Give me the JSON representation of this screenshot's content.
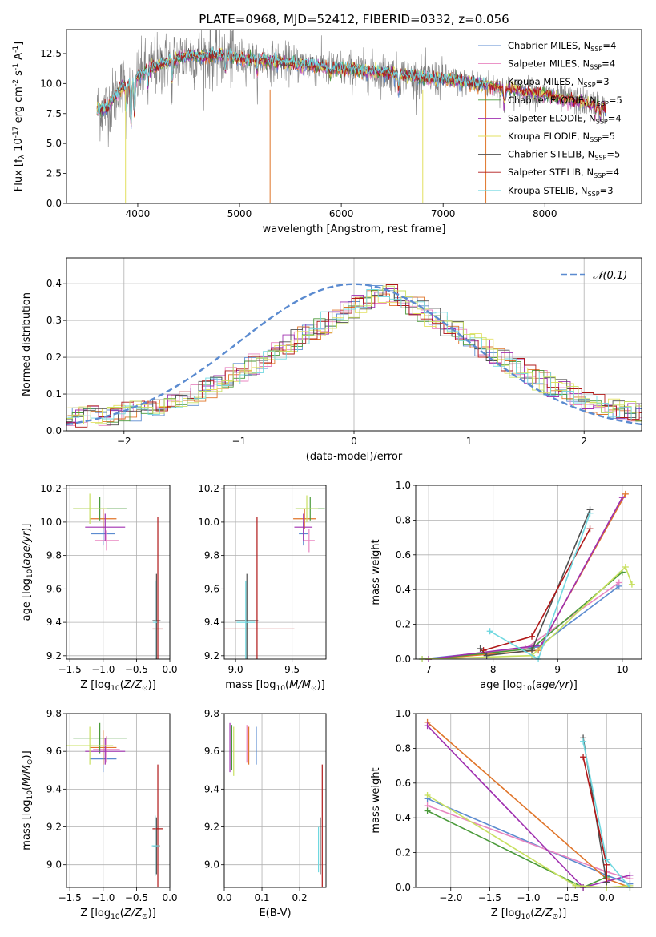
{
  "chart_data": [
    {
      "id": "spectrum",
      "type": "line",
      "title": "PLATE=0968, MJD=52412, FIBERID=0332, z=0.056",
      "xlabel": "wavelength [Angstrom, rest frame]",
      "ylabel": "Flux [f$_\\lambda$ 10$^{-17}$ erg cm$^{-2}$ s$^{-1}$ A$^{-1}$]",
      "xlim": [
        3300,
        8950
      ],
      "ylim": [
        0,
        14.5
      ],
      "xticks": [
        4000,
        5000,
        6000,
        7000,
        8000
      ],
      "yticks": [
        0.0,
        2.5,
        5.0,
        7.5,
        10.0,
        12.5
      ],
      "grid": false,
      "legend_position": "top-right",
      "data_color": "#808080",
      "data_range": [
        3600,
        8600
      ],
      "continuum": [
        [
          3600,
          7.8
        ],
        [
          3700,
          8.0
        ],
        [
          3780,
          9.0
        ],
        [
          3850,
          9.8
        ],
        [
          3950,
          10.0
        ],
        [
          4000,
          10.5
        ],
        [
          4100,
          11.2
        ],
        [
          4300,
          11.8
        ],
        [
          4500,
          12.3
        ],
        [
          4700,
          12.3
        ],
        [
          4850,
          12.4
        ],
        [
          5000,
          12.1
        ],
        [
          5200,
          11.9
        ],
        [
          5500,
          11.7
        ],
        [
          5800,
          11.4
        ],
        [
          6000,
          11.2
        ],
        [
          6300,
          11.0
        ],
        [
          6500,
          10.8
        ],
        [
          6700,
          10.6
        ],
        [
          6900,
          10.4
        ],
        [
          7000,
          10.4
        ],
        [
          7300,
          10.0
        ],
        [
          7600,
          9.6
        ],
        [
          7800,
          9.3
        ],
        [
          8000,
          9.1
        ],
        [
          8200,
          8.7
        ],
        [
          8400,
          8.4
        ],
        [
          8600,
          8.0
        ]
      ],
      "series": [
        {
          "name": "Chabrier MILES, N$_{SSP}$=4",
          "color": "#5b8bd0"
        },
        {
          "name": "Salpeter MILES, N$_{SSP}$=4",
          "color": "#e885c0"
        },
        {
          "name": "Kroupa MILES, N$_{SSP}$=3",
          "color": "#e0752a"
        },
        {
          "name": "Chabrier ELODIE, N$_{SSP}$=5",
          "color": "#4a9a3a"
        },
        {
          "name": "Salpeter ELODIE, N$_{SSP}$=4",
          "color": "#a030b0"
        },
        {
          "name": "Kroupa ELODIE, N$_{SSP}$=5",
          "color": "#e3e060"
        },
        {
          "name": "Chabrier STELIB, N$_{SSP}$=5",
          "color": "#505050"
        },
        {
          "name": "Salpeter STELIB, N$_{SSP}$=4",
          "color": "#b01818"
        },
        {
          "name": "Kroupa STELIB, N$_{SSP}$=3",
          "color": "#70d8e0"
        }
      ]
    },
    {
      "id": "residuals",
      "type": "line",
      "xlabel": "(data-model)/error",
      "ylabel": "Normed distribution",
      "xlim": [
        -2.5,
        2.5
      ],
      "ylim": [
        0,
        0.47
      ],
      "xticks": [
        -2,
        -1,
        0,
        1,
        2
      ],
      "yticks": [
        0.0,
        0.1,
        0.2,
        0.3,
        0.4
      ],
      "grid": true,
      "legend_position": "top-right",
      "gaussian": {
        "name": "$\\mathcal{N}(0,1)$",
        "mu": 0,
        "sigma": 1,
        "color": "#5b8bd0"
      },
      "hist_bin_width": 0.1,
      "hist_colors": [
        "#5b8bd0",
        "#e885c0",
        "#e0752a",
        "#4a9a3a",
        "#a030b0",
        "#e3e060",
        "#505050",
        "#b01818",
        "#70d8e0",
        "#c8e060"
      ]
    },
    {
      "id": "age_vs_Z",
      "type": "scatter",
      "xlabel": "Z [log$_{10}$($Z/Z_\\odot$)]",
      "ylabel": "age  [log$_{10}$($age/yr$)]",
      "xlim": [
        -1.55,
        0.0
      ],
      "ylim": [
        9.18,
        10.22
      ],
      "xticks": [
        -1.5,
        -1.0,
        -0.5,
        0.0
      ],
      "yticks": [
        9.2,
        9.4,
        9.6,
        9.8,
        10.0,
        10.2
      ],
      "grid": true,
      "points": [
        {
          "x": -1.0,
          "y": 9.93,
          "xerr": 0.18,
          "yerr": 0.07,
          "color": "#5b8bd0"
        },
        {
          "x": -0.95,
          "y": 9.89,
          "xerr": 0.18,
          "yerr": 0.06,
          "color": "#e885c0"
        },
        {
          "x": -1.0,
          "y": 10.02,
          "xerr": 0.2,
          "yerr": 0.06,
          "color": "#e0752a"
        },
        {
          "x": -1.05,
          "y": 10.08,
          "xerr": 0.4,
          "yerr": 0.07,
          "color": "#4a9a3a"
        },
        {
          "x": -0.97,
          "y": 9.97,
          "xerr": 0.3,
          "yerr": 0.08,
          "color": "#a030b0"
        },
        {
          "x": -1.2,
          "y": 10.08,
          "xerr": 0.25,
          "yerr": 0.09,
          "color": "#c8e060"
        },
        {
          "x": -0.2,
          "y": 9.41,
          "xerr": 0.06,
          "yerr": 0.28,
          "color": "#505050"
        },
        {
          "x": -0.18,
          "y": 9.36,
          "xerr": 0.08,
          "yerr": 0.67,
          "color": "#b01818"
        },
        {
          "x": -0.22,
          "y": 9.4,
          "xerr": 0.03,
          "yerr": 0.25,
          "color": "#70d8e0"
        }
      ]
    },
    {
      "id": "age_vs_mass",
      "type": "scatter",
      "xlabel": "mass [log$_{10}$($M/M_\\odot$)]",
      "ylabel": "",
      "xlim": [
        8.9,
        9.8
      ],
      "ylim": [
        9.18,
        10.22
      ],
      "xticks": [
        9.0,
        9.5
      ],
      "yticks": [
        9.2,
        9.4,
        9.6,
        9.8,
        10.0,
        10.2
      ],
      "grid": true,
      "points": [
        {
          "x": 9.6,
          "y": 9.93,
          "xerr": 0.04,
          "yerr": 0.07,
          "color": "#5b8bd0"
        },
        {
          "x": 9.65,
          "y": 9.89,
          "xerr": 0.05,
          "yerr": 0.07,
          "color": "#e885c0"
        },
        {
          "x": 9.61,
          "y": 10.02,
          "xerr": 0.1,
          "yerr": 0.06,
          "color": "#e0752a"
        },
        {
          "x": 9.66,
          "y": 10.08,
          "xerr": 0.13,
          "yerr": 0.07,
          "color": "#4a9a3a"
        },
        {
          "x": 9.6,
          "y": 9.97,
          "xerr": 0.08,
          "yerr": 0.08,
          "color": "#a030b0"
        },
        {
          "x": 9.63,
          "y": 10.08,
          "xerr": 0.1,
          "yerr": 0.08,
          "color": "#c8e060"
        },
        {
          "x": 9.1,
          "y": 9.41,
          "xerr": 0.1,
          "yerr": 0.28,
          "color": "#505050"
        },
        {
          "x": 9.19,
          "y": 9.36,
          "xerr": 0.33,
          "yerr": 0.67,
          "color": "#b01818"
        },
        {
          "x": 9.09,
          "y": 9.4,
          "xerr": 0.08,
          "yerr": 0.25,
          "color": "#70d8e0"
        }
      ]
    },
    {
      "id": "weight_vs_age",
      "type": "line",
      "xlabel": "age  [log$_{10}$($age/yr$)]",
      "ylabel": "mass weight",
      "xlim": [
        6.8,
        10.3
      ],
      "ylim": [
        0,
        1.0
      ],
      "xticks": [
        7,
        8,
        9,
        10
      ],
      "yticks": [
        0.0,
        0.2,
        0.4,
        0.6,
        0.8,
        1.0
      ],
      "grid": true,
      "series": [
        {
          "color": "#5b8bd0",
          "x": [
            6.9,
            8.7,
            9.95
          ],
          "y": [
            0.0,
            0.07,
            0.42
          ]
        },
        {
          "color": "#e885c0",
          "x": [
            7.0,
            8.5,
            9.95
          ],
          "y": [
            0.0,
            0.06,
            0.44
          ]
        },
        {
          "color": "#e0752a",
          "x": [
            7.0,
            8.7,
            10.05
          ],
          "y": [
            0.0,
            0.05,
            0.95
          ]
        },
        {
          "color": "#4a9a3a",
          "x": [
            7.0,
            8.6,
            10.0
          ],
          "y": [
            0.0,
            0.06,
            0.5
          ]
        },
        {
          "color": "#a030b0",
          "x": [
            7.0,
            8.75,
            10.0
          ],
          "y": [
            0.0,
            0.08,
            0.93
          ]
        },
        {
          "color": "#c8e060",
          "x": [
            6.9,
            8.6,
            10.05,
            10.15
          ],
          "y": [
            0.0,
            0.02,
            0.53,
            0.43
          ]
        },
        {
          "color": "#505050",
          "x": [
            7.8,
            7.9,
            8.6,
            9.5
          ],
          "y": [
            0.06,
            0.02,
            0.05,
            0.86
          ]
        },
        {
          "color": "#b01818",
          "x": [
            7.85,
            8.6,
            9.5
          ],
          "y": [
            0.05,
            0.13,
            0.75
          ]
        },
        {
          "color": "#70d8e0",
          "x": [
            7.95,
            8.7,
            9.5
          ],
          "y": [
            0.16,
            0.0,
            0.84
          ]
        }
      ]
    },
    {
      "id": "mass_vs_Z",
      "type": "scatter",
      "xlabel": "Z [log$_{10}$($Z/Z_\\odot$)]",
      "ylabel": "mass [log$_{10}$($M/M_\\odot$)]",
      "xlim": [
        -1.55,
        0.0
      ],
      "ylim": [
        8.88,
        9.8
      ],
      "xticks": [
        -1.5,
        -1.0,
        -0.5,
        0.0
      ],
      "yticks": [
        9.0,
        9.2,
        9.4,
        9.6,
        9.8
      ],
      "grid": true,
      "points": [
        {
          "x": -1.0,
          "y": 9.56,
          "xerr": 0.2,
          "yerr": 0.07,
          "color": "#5b8bd0"
        },
        {
          "x": -0.95,
          "y": 9.61,
          "xerr": 0.2,
          "yerr": 0.07,
          "color": "#e885c0"
        },
        {
          "x": -1.0,
          "y": 9.62,
          "xerr": 0.2,
          "yerr": 0.09,
          "color": "#e0752a"
        },
        {
          "x": -1.05,
          "y": 9.67,
          "xerr": 0.4,
          "yerr": 0.08,
          "color": "#4a9a3a"
        },
        {
          "x": -0.97,
          "y": 9.6,
          "xerr": 0.3,
          "yerr": 0.07,
          "color": "#a030b0"
        },
        {
          "x": -1.2,
          "y": 9.63,
          "xerr": 0.35,
          "yerr": 0.1,
          "color": "#c8e060"
        },
        {
          "x": -0.2,
          "y": 9.1,
          "xerr": 0.05,
          "yerr": 0.15,
          "color": "#505050"
        },
        {
          "x": -0.18,
          "y": 9.19,
          "xerr": 0.08,
          "yerr": 0.34,
          "color": "#b01818"
        },
        {
          "x": -0.22,
          "y": 9.1,
          "xerr": 0.05,
          "yerr": 0.16,
          "color": "#70d8e0"
        }
      ]
    },
    {
      "id": "mass_vs_ebv",
      "type": "scatter",
      "xlabel": "E(B-V)",
      "ylabel": "",
      "xlim": [
        0.0,
        0.27
      ],
      "ylim": [
        8.88,
        9.8
      ],
      "xticks": [
        0.0,
        0.1,
        0.2
      ],
      "yticks": [
        9.0,
        9.2,
        9.4,
        9.6,
        9.8
      ],
      "grid": true,
      "points": [
        {
          "x": 0.085,
          "y": 9.63,
          "xerr": 0.0,
          "yerr": 0.1,
          "color": "#5b8bd0"
        },
        {
          "x": 0.06,
          "y": 9.64,
          "xerr": 0.0,
          "yerr": 0.1,
          "color": "#e885c0"
        },
        {
          "x": 0.065,
          "y": 9.63,
          "xerr": 0.0,
          "yerr": 0.1,
          "color": "#e0752a"
        },
        {
          "x": 0.02,
          "y": 9.62,
          "xerr": 0.0,
          "yerr": 0.12,
          "color": "#4a9a3a"
        },
        {
          "x": 0.015,
          "y": 9.62,
          "xerr": 0.0,
          "yerr": 0.13,
          "color": "#a030b0"
        },
        {
          "x": 0.025,
          "y": 9.6,
          "xerr": 0.0,
          "yerr": 0.13,
          "color": "#c8e060"
        },
        {
          "x": 0.255,
          "y": 9.1,
          "xerr": 0.0,
          "yerr": 0.15,
          "color": "#505050"
        },
        {
          "x": 0.26,
          "y": 9.19,
          "xerr": 0.0,
          "yerr": 0.34,
          "color": "#b01818"
        },
        {
          "x": 0.25,
          "y": 9.08,
          "xerr": 0.0,
          "yerr": 0.12,
          "color": "#70d8e0"
        }
      ]
    },
    {
      "id": "weight_vs_Z",
      "type": "line",
      "xlabel": "Z [log$_{10}$($Z/Z_\\odot$)]",
      "ylabel": "mass weight",
      "xlim": [
        -2.45,
        0.45
      ],
      "ylim": [
        0,
        1.0
      ],
      "xticks": [
        -2.0,
        -1.5,
        -1.0,
        -0.5,
        0.0
      ],
      "yticks": [
        0.0,
        0.2,
        0.4,
        0.6,
        0.8,
        1.0
      ],
      "grid": true,
      "series": [
        {
          "color": "#5b8bd0",
          "x": [
            -2.3,
            0.0,
            0.3
          ],
          "y": [
            0.51,
            0.07,
            0.02
          ]
        },
        {
          "color": "#e885c0",
          "x": [
            -2.3,
            0.0,
            0.3
          ],
          "y": [
            0.47,
            0.09,
            0.05
          ]
        },
        {
          "color": "#e0752a",
          "x": [
            -2.3,
            0.0,
            0.3
          ],
          "y": [
            0.95,
            0.05,
            0.0
          ]
        },
        {
          "color": "#4a9a3a",
          "x": [
            -2.3,
            -0.3,
            0.0
          ],
          "y": [
            0.44,
            0.0,
            0.06
          ]
        },
        {
          "color": "#a030b0",
          "x": [
            -2.3,
            -0.3,
            0.3
          ],
          "y": [
            0.93,
            0.0,
            0.07
          ]
        },
        {
          "color": "#c8e060",
          "x": [
            -2.3,
            -0.4,
            0.0,
            0.3
          ],
          "y": [
            0.53,
            0.01,
            0.0,
            0.01
          ]
        },
        {
          "color": "#505050",
          "x": [
            -0.3,
            0.0
          ],
          "y": [
            0.86,
            0.03
          ]
        },
        {
          "color": "#b01818",
          "x": [
            -0.3,
            0.0,
            0.0
          ],
          "y": [
            0.75,
            0.13,
            0.05
          ]
        },
        {
          "color": "#70d8e0",
          "x": [
            -0.3,
            0.0,
            0.3
          ],
          "y": [
            0.84,
            0.16,
            0.0
          ]
        }
      ]
    }
  ]
}
